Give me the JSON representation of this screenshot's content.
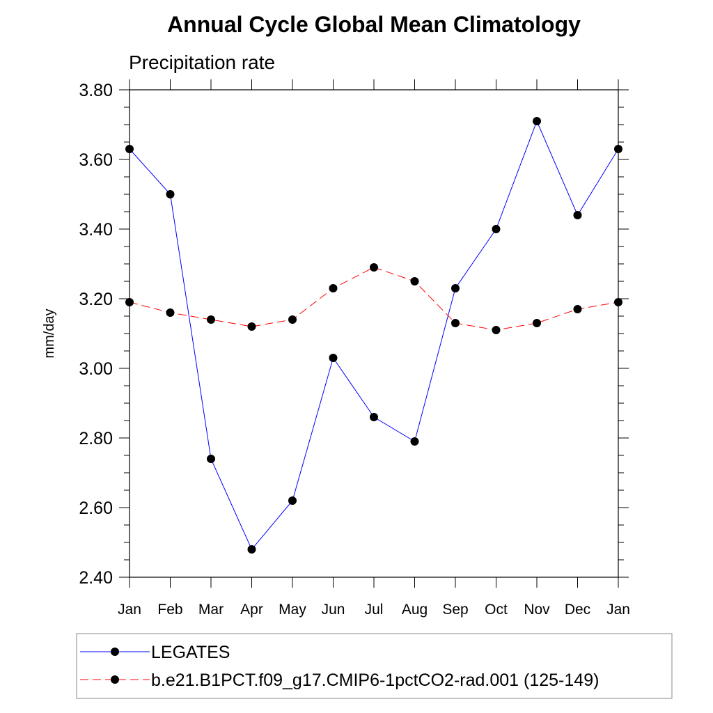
{
  "chart_data": {
    "type": "line",
    "title": "Annual Cycle Global Mean Climatology",
    "subtitle": "Precipitation rate",
    "xlabel": "",
    "ylabel": "mm/day",
    "ylim": [
      2.4,
      3.8
    ],
    "yticks": [
      "2.40",
      "2.60",
      "2.80",
      "3.00",
      "3.20",
      "3.40",
      "3.60",
      "3.80"
    ],
    "categories": [
      "Jan",
      "Feb",
      "Mar",
      "Apr",
      "May",
      "Jun",
      "Jul",
      "Aug",
      "Sep",
      "Oct",
      "Nov",
      "Dec",
      "Jan"
    ],
    "series": [
      {
        "name": "LEGATES",
        "color": "#0000ff",
        "dash": "solid",
        "values": [
          3.63,
          3.5,
          2.74,
          2.48,
          2.62,
          3.03,
          2.86,
          2.79,
          3.23,
          3.4,
          3.71,
          3.44,
          3.63
        ]
      },
      {
        "name": "b.e21.B1PCT.f09_g17.CMIP6-1pctCO2-rad.001 (125-149)",
        "color": "#ff0000",
        "dash": "dashed",
        "values": [
          3.19,
          3.16,
          3.14,
          3.12,
          3.14,
          3.23,
          3.29,
          3.25,
          3.13,
          3.11,
          3.13,
          3.17,
          3.19
        ]
      }
    ],
    "legend_position": "bottom",
    "grid": false
  }
}
